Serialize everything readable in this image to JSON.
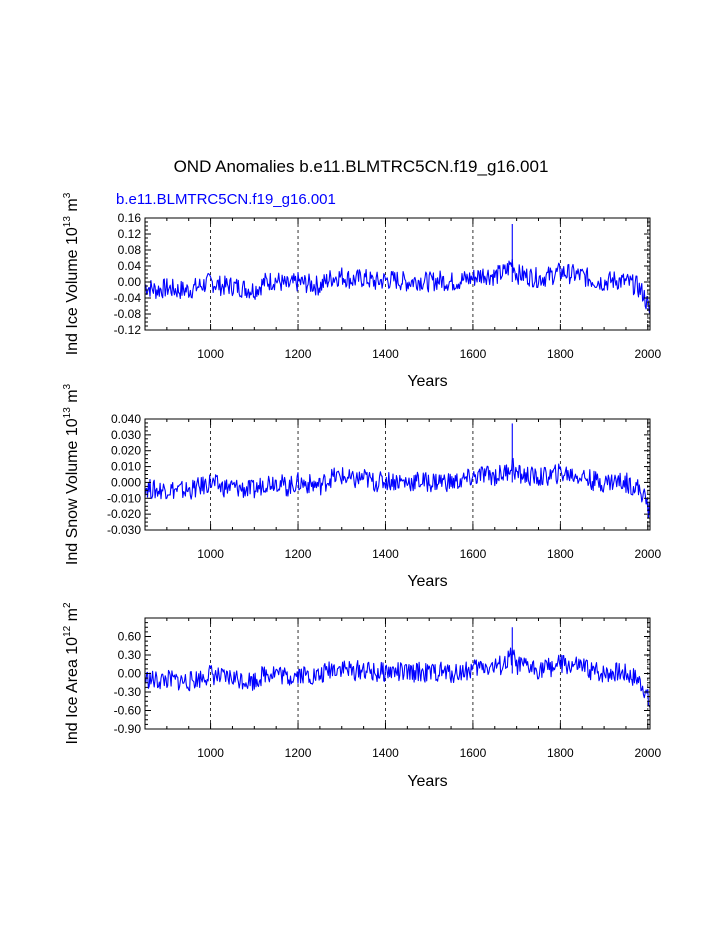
{
  "figure": {
    "title": "OND Anomalies b.e11.BLMTRC5CN.f19_g16.001",
    "subtitle": "b.e11.BLMTRC5CN.f19_g16.001"
  },
  "colors": {
    "series": "#0000ff",
    "axes": "#000000",
    "background": "#ffffff"
  },
  "chart_data": [
    {
      "type": "line",
      "title": "b.e11.BLMTRC5CN.f19_g16.001",
      "xlabel": "Years",
      "ylabel_main": "Ind Ice Volume 10",
      "ylabel_exp": "13",
      "ylabel_unit": " m",
      "ylabel_unit_exp": "3",
      "xlim": [
        850,
        2005
      ],
      "ylim": [
        -0.12,
        0.16
      ],
      "xticks": [
        1000,
        1200,
        1400,
        1600,
        1800,
        2000
      ],
      "xtick_labels": [
        "1000",
        "1200",
        "1400",
        "1600",
        "1800",
        "2000"
      ],
      "yticks": [
        -0.12,
        -0.08,
        -0.04,
        0.0,
        0.04,
        0.08,
        0.12,
        0.16
      ],
      "ytick_labels": [
        "-0.12",
        "-0.08",
        "-0.04",
        "0.00",
        "0.04",
        "0.08",
        "0.12",
        "0.16"
      ],
      "grid_x": "dashed at x ticks",
      "series": [
        {
          "name": "Ind Ice Volume",
          "x": [
            850,
            875,
            900,
            925,
            950,
            975,
            1000,
            1025,
            1050,
            1075,
            1100,
            1125,
            1150,
            1175,
            1200,
            1225,
            1250,
            1275,
            1300,
            1325,
            1350,
            1375,
            1400,
            1425,
            1450,
            1475,
            1500,
            1525,
            1550,
            1575,
            1600,
            1625,
            1650,
            1675,
            1690,
            1700,
            1725,
            1750,
            1775,
            1800,
            1825,
            1850,
            1875,
            1900,
            1925,
            1950,
            1975,
            1990,
            2000,
            2005
          ],
          "y": [
            -0.01,
            -0.02,
            -0.015,
            -0.02,
            -0.02,
            -0.01,
            0.0,
            -0.01,
            -0.01,
            -0.015,
            -0.02,
            0.0,
            0.005,
            -0.01,
            0.0,
            -0.005,
            -0.01,
            0.01,
            0.015,
            0.005,
            0.01,
            0.0,
            0.005,
            0.005,
            0.0,
            0.005,
            0.0,
            0.005,
            0.0,
            0.005,
            0.01,
            0.02,
            0.015,
            0.025,
            0.05,
            0.02,
            0.015,
            0.01,
            0.015,
            0.025,
            0.02,
            0.015,
            0.005,
            0.0,
            0.005,
            0.0,
            -0.01,
            -0.03,
            -0.06,
            -0.08
          ]
        }
      ]
    },
    {
      "type": "line",
      "xlabel": "Years",
      "ylabel_main": "Ind Snow Volume 10",
      "ylabel_exp": "13",
      "ylabel_unit": " m",
      "ylabel_unit_exp": "3",
      "xlim": [
        850,
        2005
      ],
      "ylim": [
        -0.03,
        0.04
      ],
      "xticks": [
        1000,
        1200,
        1400,
        1600,
        1800,
        2000
      ],
      "xtick_labels": [
        "1000",
        "1200",
        "1400",
        "1600",
        "1800",
        "2000"
      ],
      "yticks": [
        -0.03,
        -0.02,
        -0.01,
        0.0,
        0.01,
        0.02,
        0.03,
        0.04
      ],
      "ytick_labels": [
        "-0.030",
        "-0.020",
        "-0.010",
        "0.000",
        "0.010",
        "0.020",
        "0.030",
        "0.040"
      ],
      "grid_x": "dashed at x ticks",
      "series": [
        {
          "name": "Ind Snow Volume",
          "x": [
            850,
            875,
            900,
            925,
            950,
            975,
            1000,
            1025,
            1050,
            1075,
            1100,
            1125,
            1150,
            1175,
            1200,
            1225,
            1250,
            1275,
            1300,
            1325,
            1350,
            1375,
            1400,
            1425,
            1450,
            1475,
            1500,
            1525,
            1550,
            1575,
            1600,
            1625,
            1650,
            1675,
            1690,
            1700,
            1725,
            1750,
            1775,
            1800,
            1825,
            1850,
            1875,
            1900,
            1925,
            1950,
            1975,
            1990,
            2000,
            2005
          ],
          "y": [
            -0.003,
            -0.005,
            -0.004,
            -0.005,
            -0.005,
            -0.003,
            0.0,
            -0.003,
            -0.003,
            -0.004,
            -0.005,
            0.0,
            0.001,
            -0.003,
            0.0,
            -0.001,
            -0.002,
            0.003,
            0.004,
            0.001,
            0.003,
            0.0,
            0.001,
            0.001,
            0.0,
            0.001,
            0.0,
            0.001,
            0.0,
            0.001,
            0.003,
            0.005,
            0.004,
            0.006,
            0.012,
            0.005,
            0.004,
            0.003,
            0.004,
            0.006,
            0.005,
            0.004,
            0.001,
            0.0,
            0.001,
            0.0,
            -0.003,
            -0.008,
            -0.015,
            -0.02
          ]
        }
      ]
    },
    {
      "type": "line",
      "xlabel": "Years",
      "ylabel_main": "Ind Ice Area 10",
      "ylabel_exp": "12",
      "ylabel_unit": " m",
      "ylabel_unit_exp": "2",
      "xlim": [
        850,
        2005
      ],
      "ylim": [
        -0.9,
        0.9
      ],
      "xticks": [
        1000,
        1200,
        1400,
        1600,
        1800,
        2000
      ],
      "xtick_labels": [
        "1000",
        "1200",
        "1400",
        "1600",
        "1800",
        "2000"
      ],
      "yticks": [
        -0.9,
        -0.6,
        -0.3,
        0.0,
        0.3,
        0.6
      ],
      "ytick_labels": [
        "-0.90",
        "-0.60",
        "-0.30",
        "0.00",
        "0.30",
        "0.60"
      ],
      "grid_x": "dashed at x ticks",
      "series": [
        {
          "name": "Ind Ice Area",
          "x": [
            850,
            875,
            900,
            925,
            950,
            975,
            1000,
            1025,
            1050,
            1075,
            1100,
            1125,
            1150,
            1175,
            1200,
            1225,
            1250,
            1275,
            1300,
            1325,
            1350,
            1375,
            1400,
            1425,
            1450,
            1475,
            1500,
            1525,
            1550,
            1575,
            1600,
            1625,
            1650,
            1675,
            1690,
            1700,
            1725,
            1750,
            1775,
            1800,
            1825,
            1850,
            1875,
            1900,
            1925,
            1950,
            1975,
            1990,
            2000,
            2005
          ],
          "y": [
            -0.08,
            -0.12,
            -0.1,
            -0.12,
            -0.13,
            -0.08,
            0.0,
            -0.08,
            -0.07,
            -0.1,
            -0.12,
            0.0,
            0.03,
            -0.07,
            0.0,
            -0.03,
            -0.05,
            0.08,
            0.1,
            0.03,
            0.07,
            0.0,
            0.03,
            0.03,
            0.0,
            0.03,
            0.0,
            0.03,
            0.0,
            0.03,
            0.07,
            0.12,
            0.1,
            0.15,
            0.3,
            0.12,
            0.1,
            0.07,
            0.1,
            0.15,
            0.12,
            0.1,
            0.03,
            0.0,
            0.03,
            0.0,
            -0.08,
            -0.2,
            -0.4,
            -0.55
          ]
        }
      ]
    }
  ]
}
